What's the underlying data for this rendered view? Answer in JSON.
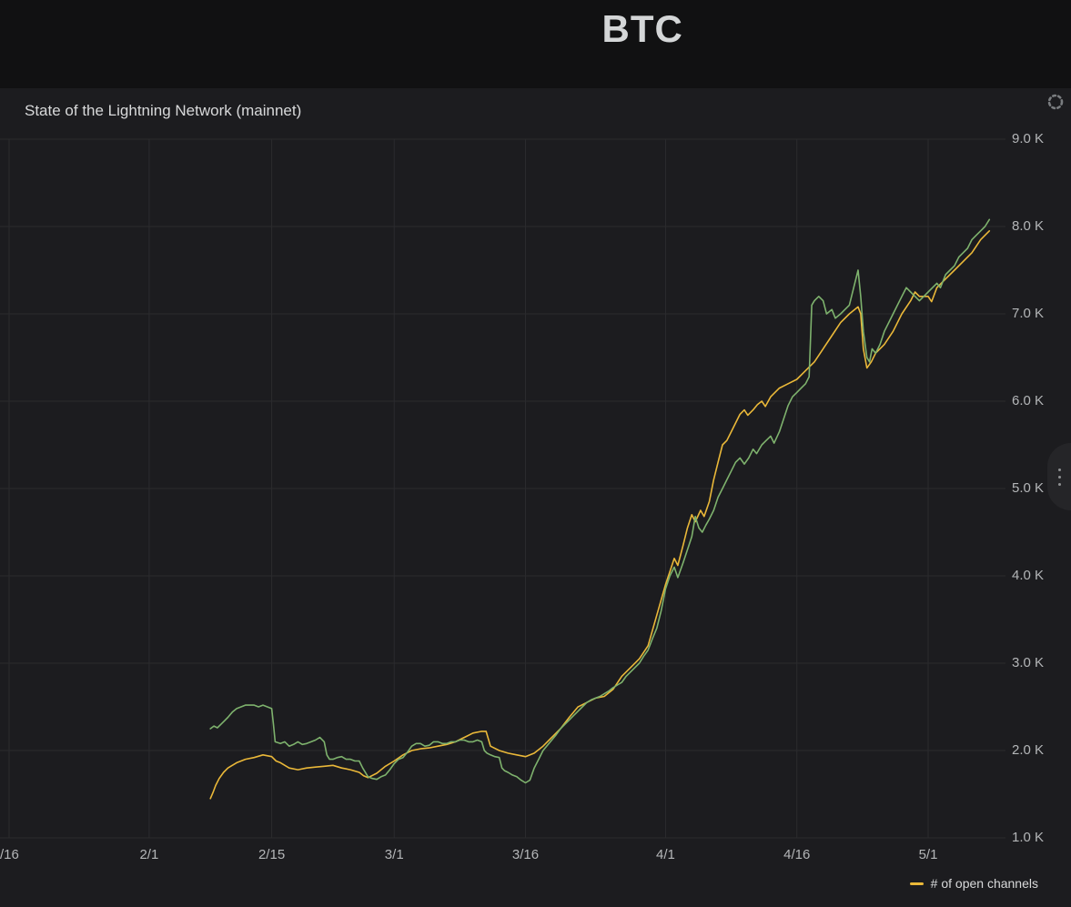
{
  "page": {
    "title": "BTC"
  },
  "panel": {
    "title": "State of the Lightning Network (mainnet)",
    "legend": [
      {
        "label": "# of open channels",
        "color": "#eab839"
      }
    ]
  },
  "icons": {
    "loading_spinner": "circular-dashed-spinner",
    "side_handle": "vertical-ellipsis"
  },
  "colors": {
    "page_bg": "#111112",
    "panel_bg": "#1c1c1f",
    "grid": "#2b2b2e",
    "axis_text": "#b4b6b8",
    "title_text": "#d4d6d7",
    "series_yellow": "#eab839",
    "series_green": "#7eb26d"
  },
  "chart_data": {
    "type": "line",
    "title": "State of the Lightning Network (mainnet)",
    "grid": true,
    "legend_position": "bottom-right",
    "y_unit": "K",
    "ylim": [
      1,
      9
    ],
    "x_unit": "days (0 = 1/16)",
    "x_ticks": [
      {
        "day": 0,
        "label": "/16",
        "align": "left"
      },
      {
        "day": 16,
        "label": "2/1"
      },
      {
        "day": 30,
        "label": "2/15"
      },
      {
        "day": 44,
        "label": "3/1"
      },
      {
        "day": 59,
        "label": "3/16"
      },
      {
        "day": 75,
        "label": "4/1"
      },
      {
        "day": 90,
        "label": "4/16"
      },
      {
        "day": 105,
        "label": "5/1"
      }
    ],
    "y_ticks": [
      {
        "value": 9,
        "label": "9.0 K"
      },
      {
        "value": 8,
        "label": "8.0 K"
      },
      {
        "value": 7,
        "label": "7.0 K"
      },
      {
        "value": 6,
        "label": "6.0 K"
      },
      {
        "value": 5,
        "label": "5.0 K"
      },
      {
        "value": 4,
        "label": "4.0 K"
      },
      {
        "value": 3,
        "label": "3.0 K"
      },
      {
        "value": 2,
        "label": "2.0 K"
      },
      {
        "value": 1,
        "label": "1.0 K"
      }
    ],
    "series": [
      {
        "name": "# of open channels",
        "color": "#eab839",
        "points": [
          [
            23,
            1.45
          ],
          [
            23.3,
            1.52
          ],
          [
            23.6,
            1.6
          ],
          [
            24,
            1.68
          ],
          [
            24.5,
            1.75
          ],
          [
            25,
            1.8
          ],
          [
            26,
            1.86
          ],
          [
            27,
            1.9
          ],
          [
            28,
            1.92
          ],
          [
            29,
            1.95
          ],
          [
            30,
            1.93
          ],
          [
            30.5,
            1.88
          ],
          [
            31,
            1.86
          ],
          [
            32,
            1.8
          ],
          [
            33,
            1.78
          ],
          [
            34,
            1.8
          ],
          [
            35,
            1.81
          ],
          [
            36,
            1.82
          ],
          [
            37,
            1.83
          ],
          [
            38,
            1.8
          ],
          [
            39,
            1.78
          ],
          [
            40,
            1.75
          ],
          [
            40.5,
            1.71
          ],
          [
            41,
            1.69
          ],
          [
            42,
            1.74
          ],
          [
            43,
            1.82
          ],
          [
            44,
            1.88
          ],
          [
            45,
            1.95
          ],
          [
            46,
            2.0
          ],
          [
            47,
            2.02
          ],
          [
            48,
            2.03
          ],
          [
            49,
            2.05
          ],
          [
            50,
            2.07
          ],
          [
            51,
            2.1
          ],
          [
            52,
            2.15
          ],
          [
            53,
            2.2
          ],
          [
            54,
            2.22
          ],
          [
            54.5,
            2.22
          ],
          [
            55,
            2.05
          ],
          [
            56,
            2.0
          ],
          [
            57,
            1.97
          ],
          [
            58,
            1.95
          ],
          [
            59,
            1.93
          ],
          [
            60,
            1.97
          ],
          [
            61,
            2.05
          ],
          [
            62,
            2.15
          ],
          [
            63,
            2.25
          ],
          [
            64,
            2.38
          ],
          [
            65,
            2.5
          ],
          [
            66,
            2.55
          ],
          [
            67,
            2.6
          ],
          [
            68,
            2.62
          ],
          [
            69,
            2.7
          ],
          [
            70,
            2.85
          ],
          [
            71,
            2.95
          ],
          [
            72,
            3.05
          ],
          [
            73,
            3.2
          ],
          [
            74,
            3.55
          ],
          [
            75,
            3.9
          ],
          [
            75.5,
            4.05
          ],
          [
            76,
            4.2
          ],
          [
            76.4,
            4.12
          ],
          [
            77,
            4.35
          ],
          [
            77.5,
            4.55
          ],
          [
            78,
            4.7
          ],
          [
            78.4,
            4.62
          ],
          [
            79,
            4.75
          ],
          [
            79.4,
            4.68
          ],
          [
            80,
            4.85
          ],
          [
            80.5,
            5.1
          ],
          [
            81,
            5.3
          ],
          [
            81.5,
            5.5
          ],
          [
            82,
            5.55
          ],
          [
            82.5,
            5.65
          ],
          [
            83,
            5.75
          ],
          [
            83.5,
            5.85
          ],
          [
            84,
            5.9
          ],
          [
            84.4,
            5.84
          ],
          [
            85,
            5.9
          ],
          [
            85.5,
            5.96
          ],
          [
            86,
            6.0
          ],
          [
            86.4,
            5.94
          ],
          [
            87,
            6.05
          ],
          [
            88,
            6.15
          ],
          [
            89,
            6.2
          ],
          [
            90,
            6.25
          ],
          [
            91,
            6.35
          ],
          [
            92,
            6.45
          ],
          [
            93,
            6.6
          ],
          [
            94,
            6.75
          ],
          [
            95,
            6.9
          ],
          [
            96,
            7.0
          ],
          [
            97,
            7.08
          ],
          [
            97.3,
            7.0
          ],
          [
            97.6,
            6.6
          ],
          [
            98,
            6.38
          ],
          [
            98.5,
            6.45
          ],
          [
            99,
            6.55
          ],
          [
            100,
            6.65
          ],
          [
            101,
            6.8
          ],
          [
            102,
            7.0
          ],
          [
            103,
            7.15
          ],
          [
            103.5,
            7.25
          ],
          [
            104,
            7.2
          ],
          [
            105,
            7.2
          ],
          [
            105.4,
            7.14
          ],
          [
            106,
            7.3
          ],
          [
            107,
            7.4
          ],
          [
            108,
            7.5
          ],
          [
            109,
            7.6
          ],
          [
            110,
            7.7
          ],
          [
            111,
            7.85
          ],
          [
            112,
            7.95
          ]
        ]
      },
      {
        "name": "unlabeled (green series)",
        "color": "#7eb26d",
        "points": [
          [
            23,
            2.25
          ],
          [
            23.4,
            2.28
          ],
          [
            23.8,
            2.26
          ],
          [
            24.2,
            2.3
          ],
          [
            24.6,
            2.34
          ],
          [
            25,
            2.38
          ],
          [
            25.5,
            2.44
          ],
          [
            26,
            2.48
          ],
          [
            26.5,
            2.5
          ],
          [
            27,
            2.52
          ],
          [
            28,
            2.52
          ],
          [
            28.5,
            2.5
          ],
          [
            29,
            2.52
          ],
          [
            29.5,
            2.5
          ],
          [
            30,
            2.48
          ],
          [
            30.2,
            2.3
          ],
          [
            30.4,
            2.1
          ],
          [
            31,
            2.08
          ],
          [
            31.5,
            2.1
          ],
          [
            32,
            2.05
          ],
          [
            32.5,
            2.07
          ],
          [
            33,
            2.1
          ],
          [
            33.5,
            2.07
          ],
          [
            34,
            2.08
          ],
          [
            34.5,
            2.1
          ],
          [
            35,
            2.12
          ],
          [
            35.5,
            2.15
          ],
          [
            36,
            2.1
          ],
          [
            36.3,
            1.95
          ],
          [
            36.6,
            1.9
          ],
          [
            37,
            1.9
          ],
          [
            37.5,
            1.92
          ],
          [
            38,
            1.93
          ],
          [
            38.5,
            1.9
          ],
          [
            39,
            1.9
          ],
          [
            39.5,
            1.88
          ],
          [
            40,
            1.88
          ],
          [
            40.4,
            1.8
          ],
          [
            41,
            1.7
          ],
          [
            41.5,
            1.68
          ],
          [
            42,
            1.67
          ],
          [
            42.5,
            1.7
          ],
          [
            43,
            1.72
          ],
          [
            43.5,
            1.78
          ],
          [
            44,
            1.85
          ],
          [
            44.5,
            1.9
          ],
          [
            45,
            1.92
          ],
          [
            45.5,
            1.98
          ],
          [
            46,
            2.05
          ],
          [
            46.5,
            2.08
          ],
          [
            47,
            2.08
          ],
          [
            47.5,
            2.05
          ],
          [
            48,
            2.06
          ],
          [
            48.5,
            2.1
          ],
          [
            49,
            2.1
          ],
          [
            49.5,
            2.08
          ],
          [
            50,
            2.08
          ],
          [
            50.5,
            2.1
          ],
          [
            51,
            2.1
          ],
          [
            51.5,
            2.12
          ],
          [
            52,
            2.12
          ],
          [
            52.5,
            2.1
          ],
          [
            53,
            2.1
          ],
          [
            53.5,
            2.12
          ],
          [
            54,
            2.1
          ],
          [
            54.3,
            2.0
          ],
          [
            54.6,
            1.97
          ],
          [
            55,
            1.95
          ],
          [
            55.5,
            1.93
          ],
          [
            56,
            1.92
          ],
          [
            56.3,
            1.8
          ],
          [
            56.6,
            1.77
          ],
          [
            57,
            1.75
          ],
          [
            57.5,
            1.72
          ],
          [
            58,
            1.7
          ],
          [
            58.5,
            1.66
          ],
          [
            59,
            1.63
          ],
          [
            59.5,
            1.66
          ],
          [
            60,
            1.8
          ],
          [
            60.5,
            1.9
          ],
          [
            61,
            2.0
          ],
          [
            61.5,
            2.06
          ],
          [
            62,
            2.12
          ],
          [
            62.5,
            2.18
          ],
          [
            63,
            2.25
          ],
          [
            63.5,
            2.3
          ],
          [
            64,
            2.35
          ],
          [
            64.5,
            2.4
          ],
          [
            65,
            2.45
          ],
          [
            65.5,
            2.5
          ],
          [
            66,
            2.55
          ],
          [
            66.5,
            2.58
          ],
          [
            67,
            2.6
          ],
          [
            67.5,
            2.62
          ],
          [
            68,
            2.65
          ],
          [
            68.5,
            2.68
          ],
          [
            69,
            2.72
          ],
          [
            69.5,
            2.75
          ],
          [
            70,
            2.78
          ],
          [
            70.5,
            2.85
          ],
          [
            71,
            2.9
          ],
          [
            71.5,
            2.95
          ],
          [
            72,
            3.0
          ],
          [
            72.5,
            3.08
          ],
          [
            73,
            3.15
          ],
          [
            73.5,
            3.28
          ],
          [
            74,
            3.4
          ],
          [
            74.5,
            3.6
          ],
          [
            75,
            3.85
          ],
          [
            75.5,
            4.0
          ],
          [
            76,
            4.1
          ],
          [
            76.4,
            3.98
          ],
          [
            77,
            4.15
          ],
          [
            77.5,
            4.3
          ],
          [
            78,
            4.45
          ],
          [
            78.4,
            4.68
          ],
          [
            78.8,
            4.55
          ],
          [
            79.2,
            4.5
          ],
          [
            79.6,
            4.58
          ],
          [
            80,
            4.65
          ],
          [
            80.5,
            4.75
          ],
          [
            81,
            4.9
          ],
          [
            81.5,
            5.0
          ],
          [
            82,
            5.1
          ],
          [
            82.5,
            5.2
          ],
          [
            83,
            5.3
          ],
          [
            83.5,
            5.35
          ],
          [
            84,
            5.28
          ],
          [
            84.5,
            5.35
          ],
          [
            85,
            5.45
          ],
          [
            85.4,
            5.4
          ],
          [
            86,
            5.5
          ],
          [
            86.5,
            5.55
          ],
          [
            87,
            5.6
          ],
          [
            87.4,
            5.52
          ],
          [
            88,
            5.65
          ],
          [
            88.5,
            5.8
          ],
          [
            89,
            5.95
          ],
          [
            89.5,
            6.05
          ],
          [
            90,
            6.1
          ],
          [
            90.5,
            6.15
          ],
          [
            91,
            6.2
          ],
          [
            91.4,
            6.28
          ],
          [
            91.7,
            7.1
          ],
          [
            92,
            7.15
          ],
          [
            92.5,
            7.2
          ],
          [
            93,
            7.15
          ],
          [
            93.4,
            7.0
          ],
          [
            94,
            7.05
          ],
          [
            94.4,
            6.95
          ],
          [
            95,
            7.0
          ],
          [
            95.5,
            7.05
          ],
          [
            96,
            7.1
          ],
          [
            96.5,
            7.3
          ],
          [
            97,
            7.5
          ],
          [
            97.3,
            7.2
          ],
          [
            97.6,
            6.8
          ],
          [
            98,
            6.5
          ],
          [
            98.3,
            6.45
          ],
          [
            98.6,
            6.6
          ],
          [
            99,
            6.55
          ],
          [
            99.5,
            6.65
          ],
          [
            100,
            6.8
          ],
          [
            100.5,
            6.9
          ],
          [
            101,
            7.0
          ],
          [
            101.5,
            7.1
          ],
          [
            102,
            7.2
          ],
          [
            102.5,
            7.3
          ],
          [
            103,
            7.25
          ],
          [
            103.5,
            7.2
          ],
          [
            104,
            7.15
          ],
          [
            104.5,
            7.2
          ],
          [
            105,
            7.25
          ],
          [
            105.5,
            7.3
          ],
          [
            106,
            7.35
          ],
          [
            106.4,
            7.3
          ],
          [
            107,
            7.45
          ],
          [
            107.5,
            7.5
          ],
          [
            108,
            7.55
          ],
          [
            108.5,
            7.65
          ],
          [
            109,
            7.7
          ],
          [
            109.5,
            7.75
          ],
          [
            110,
            7.85
          ],
          [
            110.5,
            7.9
          ],
          [
            111,
            7.95
          ],
          [
            111.5,
            8.0
          ],
          [
            112,
            8.08
          ]
        ]
      }
    ]
  }
}
